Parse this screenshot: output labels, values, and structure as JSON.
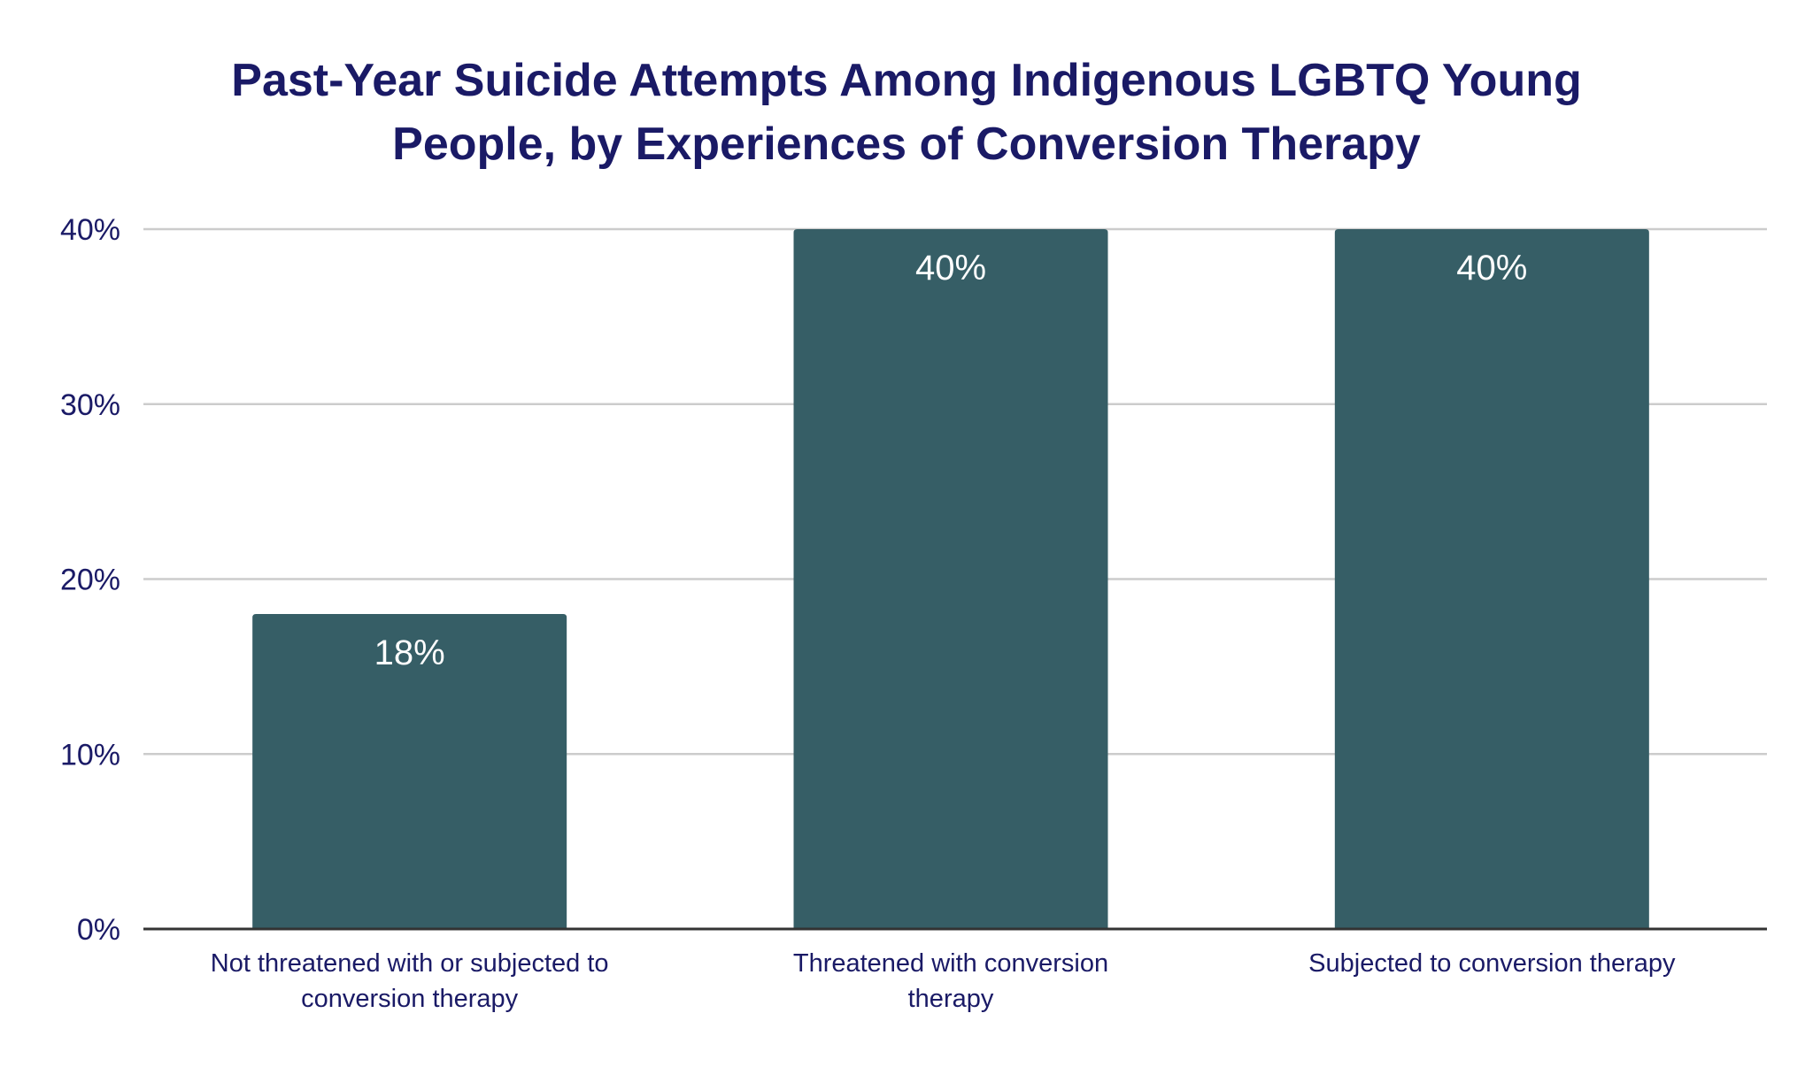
{
  "chart_data": {
    "type": "bar",
    "title_lines": [
      "Past-Year Suicide Attempts Among Indigenous LGBTQ Young",
      "People, by Experiences of Conversion Therapy"
    ],
    "categories": [
      [
        "Not threatened with or subjected to",
        "conversion therapy"
      ],
      [
        "Threatened with conversion",
        "therapy"
      ],
      [
        "Subjected to conversion therapy"
      ]
    ],
    "values": [
      18,
      40,
      40
    ],
    "data_labels": [
      "18%",
      "40%",
      "40%"
    ],
    "ylim": [
      0,
      40
    ],
    "yticks": [
      0,
      10,
      20,
      30,
      40
    ],
    "ytick_labels": [
      "0%",
      "10%",
      "20%",
      "30%",
      "40%"
    ],
    "xlabel": "",
    "ylabel": "",
    "grid": true,
    "colors": {
      "bar": "#365e66",
      "text": "#1a1a66",
      "grid": "#cccccc",
      "axis": "#333333",
      "label": "#ffffff"
    }
  }
}
